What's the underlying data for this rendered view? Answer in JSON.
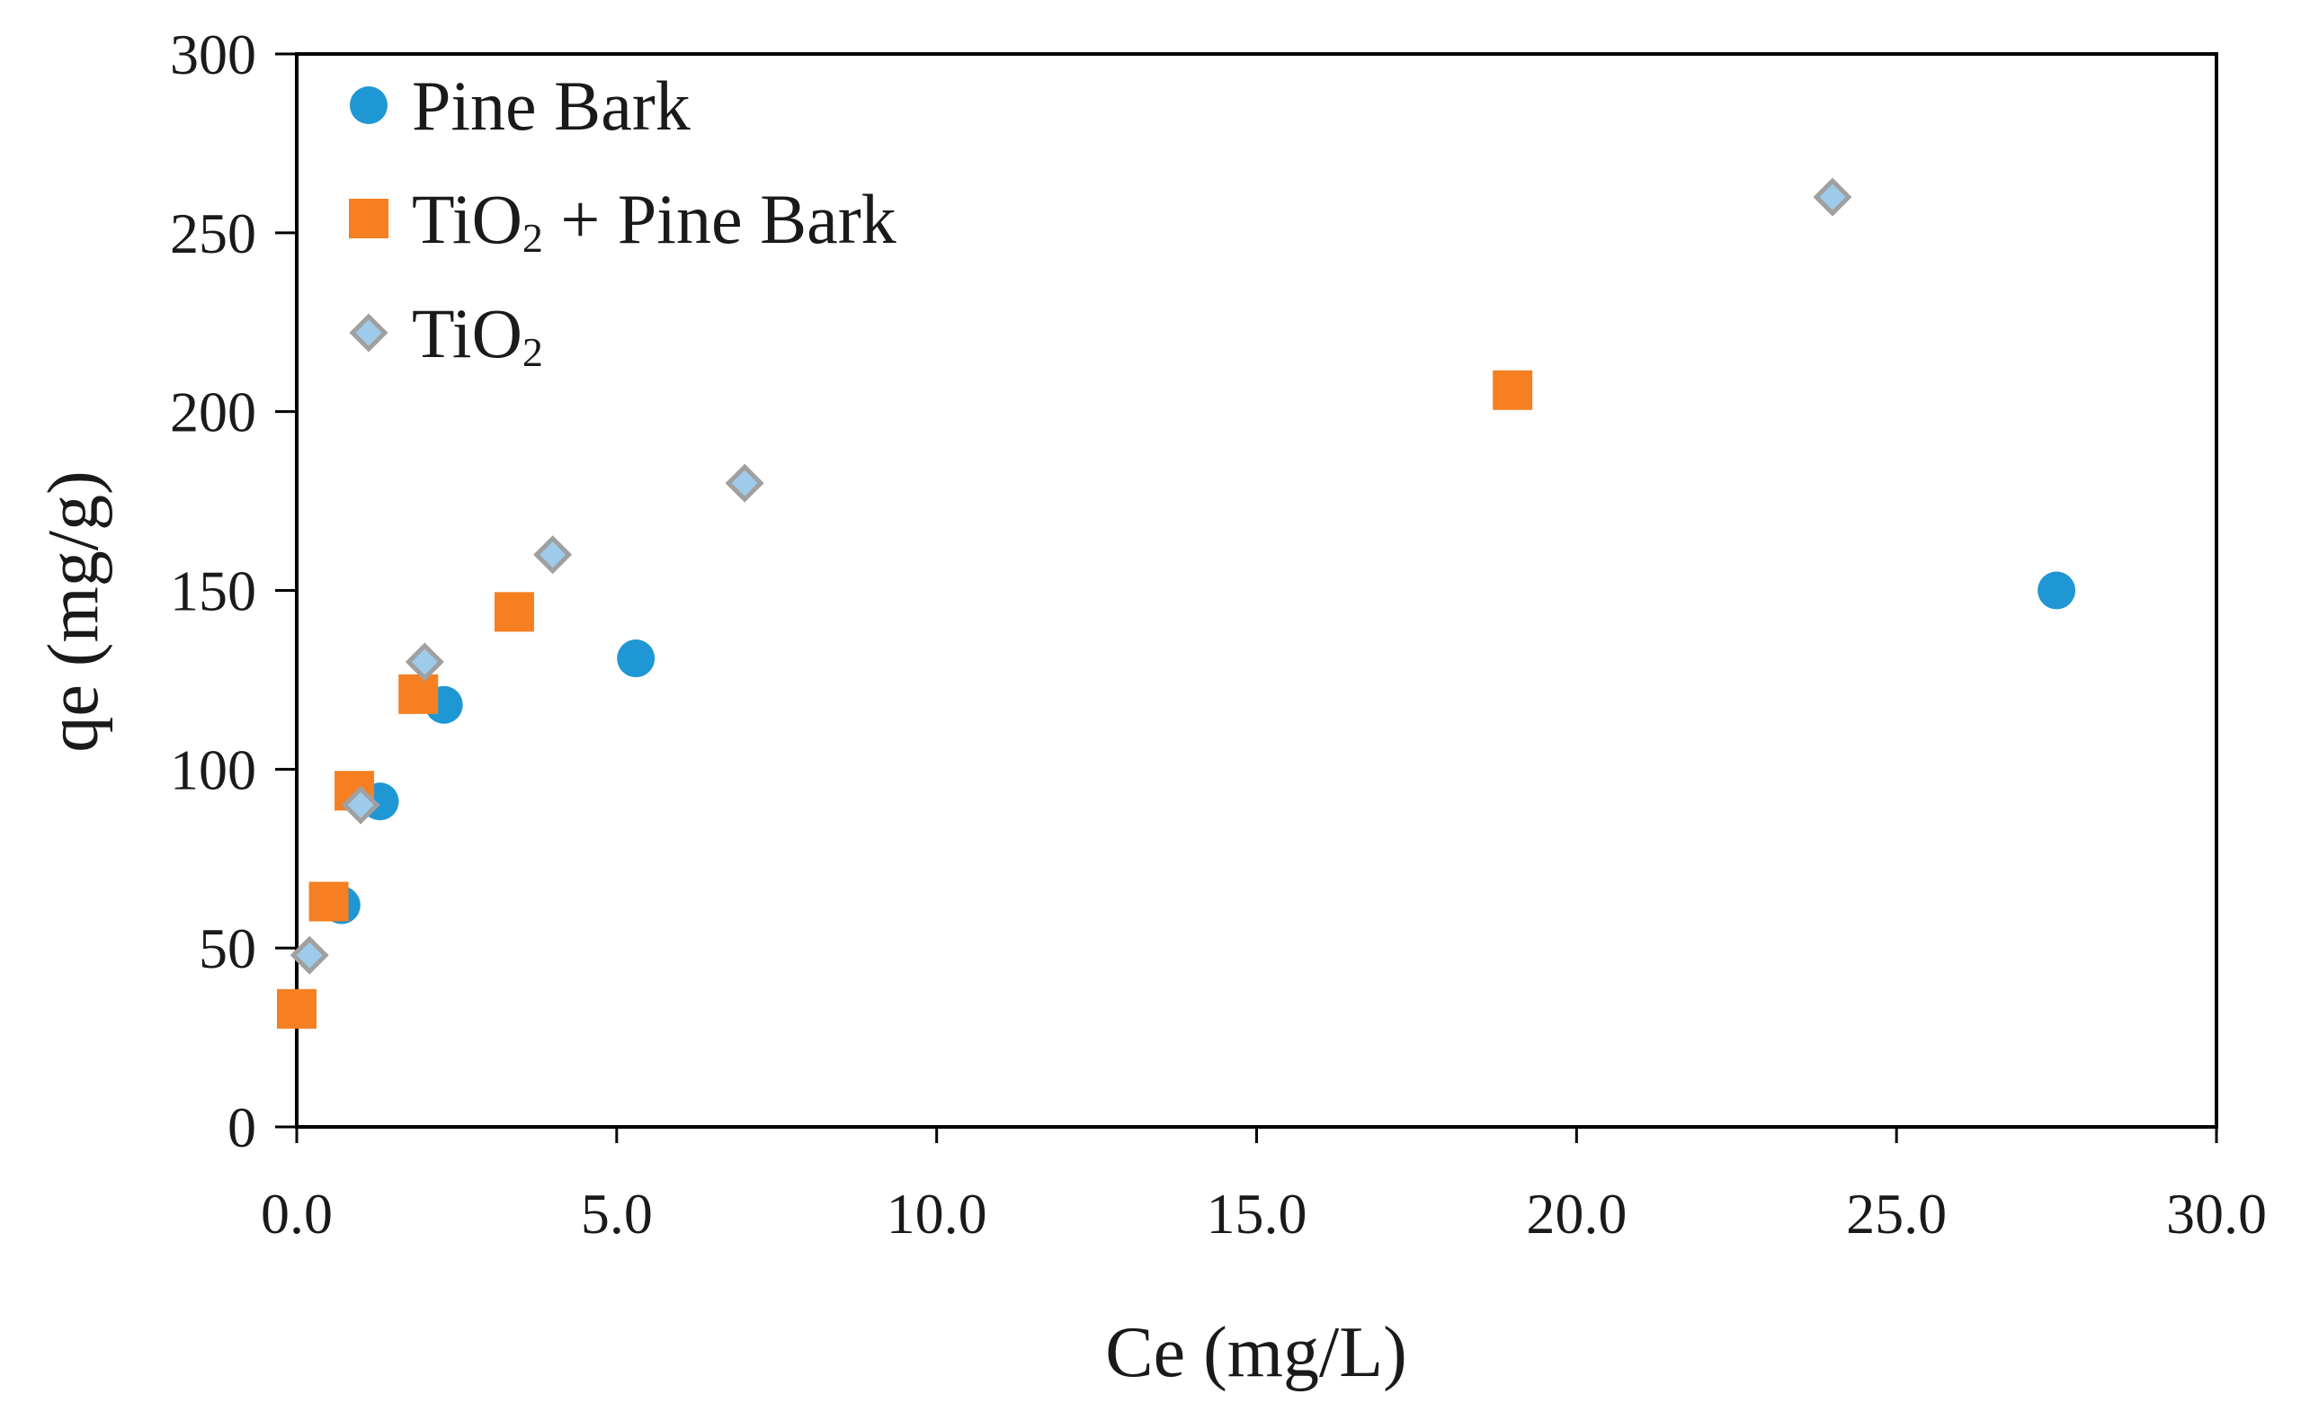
{
  "chart_data": {
    "type": "scatter",
    "title": "",
    "xlabel": "Ce (mg/L)",
    "ylabel": "qe (mg/g)",
    "xlim": [
      0,
      30
    ],
    "ylim": [
      0,
      300
    ],
    "x_ticks": [
      "0.0",
      "5.0",
      "10.0",
      "15.0",
      "20.0",
      "25.0",
      "30.0"
    ],
    "y_ticks": [
      "0",
      "50",
      "100",
      "150",
      "200",
      "250",
      "300"
    ],
    "grid": false,
    "legend_position": "top-left",
    "series": [
      {
        "name": "Pine Bark",
        "name_main": "Pine Bark",
        "marker": "circle",
        "color": "#1f97d4",
        "points": [
          {
            "x": 0.7,
            "y": 62
          },
          {
            "x": 1.3,
            "y": 91
          },
          {
            "x": 2.3,
            "y": 118
          },
          {
            "x": 5.3,
            "y": 131
          },
          {
            "x": 27.5,
            "y": 150
          }
        ]
      },
      {
        "name": "TiO2 + Pine Bark",
        "name_main": "TiO",
        "name_sub": "2",
        "name_rest": " + Pine Bark",
        "marker": "square",
        "color": "#f57f21",
        "points": [
          {
            "x": 0.0,
            "y": 33
          },
          {
            "x": 0.5,
            "y": 63
          },
          {
            "x": 0.9,
            "y": 94
          },
          {
            "x": 1.9,
            "y": 121
          },
          {
            "x": 3.4,
            "y": 144
          },
          {
            "x": 19.0,
            "y": 206
          }
        ]
      },
      {
        "name": "TiO2",
        "name_main": "TiO",
        "name_sub": "2",
        "name_rest": "",
        "marker": "diamond",
        "color": "#9ecbea",
        "stroke": "#a0a0a0",
        "points": [
          {
            "x": 0.2,
            "y": 48
          },
          {
            "x": 1.0,
            "y": 90
          },
          {
            "x": 2.0,
            "y": 130
          },
          {
            "x": 4.0,
            "y": 160
          },
          {
            "x": 7.0,
            "y": 180
          },
          {
            "x": 24.0,
            "y": 260
          }
        ]
      }
    ]
  }
}
